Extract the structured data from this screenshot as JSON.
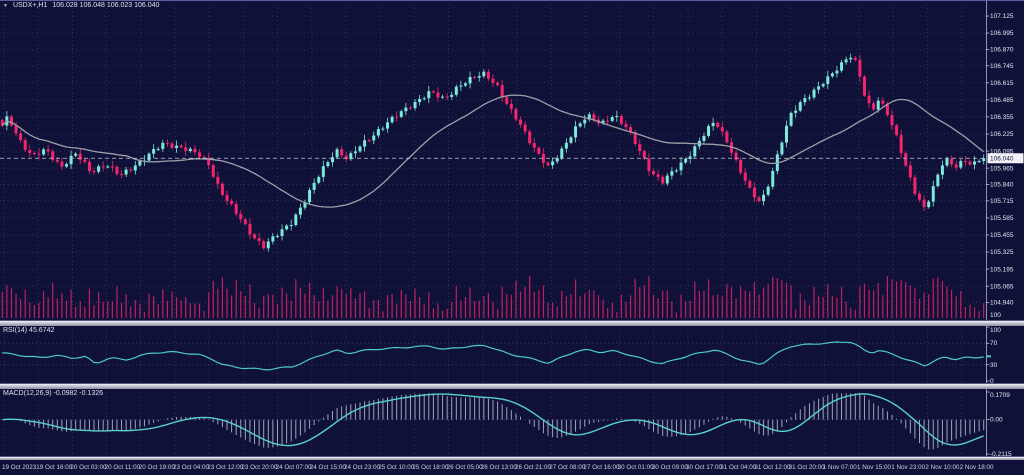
{
  "colors": {
    "background": "#0f1138",
    "grid": "#3c4070",
    "bull": "#7ce9dc",
    "bear": "#f5256d",
    "ma": "#9fa0a8",
    "rsi_line": "#4fc8c8",
    "macd_signal": "#5ad0ca",
    "macd_histogram": "#b9bdd4",
    "volume": "#c02060",
    "axis_text": "#e4e6f2",
    "time_text": "#cdd0e2",
    "current_price_bg": "#f2f2f6",
    "current_price_text": "#12143c",
    "price_line": "#c8c8d2"
  },
  "main_chart": {
    "symbol_menu_icon": "▼",
    "symbol_timeframe": "USDX+,H1",
    "ohlc_text": "106.028 106.048 106.023 106.040",
    "current_price": "106.040",
    "volume_axis_label": "100"
  },
  "rsi_pane": {
    "label": "RSI(14) 45.6742"
  },
  "macd_pane": {
    "label": "MACD(12,26,9) -0.0982 -0.1326"
  },
  "chart_data": {
    "type": "candlestick",
    "symbol": "USDX+",
    "timeframe": "H1",
    "last_ohlc": {
      "open": 106.028,
      "high": 106.048,
      "low": 106.023,
      "close": 106.04
    },
    "bars": 215,
    "price_range": [
      104.94,
      107.125
    ],
    "price_ticks": [
      "107.125",
      "106.995",
      "106.870",
      "106.745",
      "106.615",
      "106.485",
      "106.355",
      "106.225",
      "106.095",
      "105.965",
      "105.840",
      "105.715",
      "105.585",
      "105.455",
      "105.325",
      "105.195",
      "105.065",
      "104.940"
    ],
    "time_labels": [
      "19 Oct 2023",
      "19 Oct 16:00",
      "20 Oct 03:00",
      "20 Oct 11:00",
      "20 Oct 19:00",
      "23 Oct 04:00",
      "23 Oct 12:00",
      "23 Oct 20:00",
      "24 Oct 07:00",
      "24 Oct 15:00",
      "24 Oct 23:00",
      "25 Oct 10:00",
      "25 Oct 18:00",
      "26 Oct 05:00",
      "26 Oct 13:00",
      "26 Oct 21:00",
      "27 Oct 08:00",
      "27 Oct 16:00",
      "30 Oct 01:00",
      "30 Oct 09:00",
      "30 Oct 17:00",
      "31 Oct 04:00",
      "31 Oct 12:00",
      "31 Oct 20:00",
      "1 Nov 07:00",
      "1 Nov 15:00",
      "1 Nov 23:00",
      "2 Nov 10:00",
      "2 Nov 18:00"
    ],
    "price_path": [
      [
        0,
        106.28
      ],
      [
        0.006,
        106.36
      ],
      [
        0.015,
        106.22
      ],
      [
        0.03,
        106.05
      ],
      [
        0.045,
        106.1
      ],
      [
        0.06,
        105.98
      ],
      [
        0.075,
        106.07
      ],
      [
        0.09,
        105.94
      ],
      [
        0.105,
        106.0
      ],
      [
        0.12,
        105.9
      ],
      [
        0.135,
        105.99
      ],
      [
        0.15,
        106.07
      ],
      [
        0.165,
        106.15
      ],
      [
        0.182,
        106.13
      ],
      [
        0.198,
        106.07
      ],
      [
        0.21,
        106.0
      ],
      [
        0.222,
        105.8
      ],
      [
        0.238,
        105.62
      ],
      [
        0.252,
        105.48
      ],
      [
        0.266,
        105.37
      ],
      [
        0.28,
        105.45
      ],
      [
        0.294,
        105.55
      ],
      [
        0.31,
        105.74
      ],
      [
        0.326,
        105.95
      ],
      [
        0.34,
        106.11
      ],
      [
        0.352,
        106.03
      ],
      [
        0.366,
        106.14
      ],
      [
        0.382,
        106.25
      ],
      [
        0.4,
        106.35
      ],
      [
        0.418,
        106.46
      ],
      [
        0.436,
        106.54
      ],
      [
        0.45,
        106.49
      ],
      [
        0.464,
        106.59
      ],
      [
        0.478,
        106.64
      ],
      [
        0.492,
        106.69
      ],
      [
        0.504,
        106.6
      ],
      [
        0.516,
        106.42
      ],
      [
        0.53,
        106.27
      ],
      [
        0.544,
        106.1
      ],
      [
        0.557,
        105.96
      ],
      [
        0.57,
        106.1
      ],
      [
        0.583,
        106.27
      ],
      [
        0.596,
        106.36
      ],
      [
        0.61,
        106.3
      ],
      [
        0.623,
        106.38
      ],
      [
        0.636,
        106.27
      ],
      [
        0.649,
        106.1
      ],
      [
        0.661,
        105.94
      ],
      [
        0.673,
        105.86
      ],
      [
        0.686,
        105.95
      ],
      [
        0.7,
        106.07
      ],
      [
        0.713,
        106.2
      ],
      [
        0.726,
        106.32
      ],
      [
        0.739,
        106.17
      ],
      [
        0.751,
        105.96
      ],
      [
        0.763,
        105.77
      ],
      [
        0.773,
        105.7
      ],
      [
        0.783,
        105.9
      ],
      [
        0.793,
        106.14
      ],
      [
        0.803,
        106.36
      ],
      [
        0.816,
        106.49
      ],
      [
        0.829,
        106.57
      ],
      [
        0.841,
        106.64
      ],
      [
        0.853,
        106.74
      ],
      [
        0.863,
        106.84
      ],
      [
        0.871,
        106.76
      ],
      [
        0.879,
        106.5
      ],
      [
        0.886,
        106.39
      ],
      [
        0.893,
        106.49
      ],
      [
        0.901,
        106.41
      ],
      [
        0.911,
        106.21
      ],
      [
        0.921,
        105.96
      ],
      [
        0.931,
        105.76
      ],
      [
        0.94,
        105.66
      ],
      [
        0.95,
        105.85
      ],
      [
        0.96,
        106.03
      ],
      [
        0.97,
        105.97
      ],
      [
        0.98,
        106.03
      ],
      [
        0.99,
        106.0
      ],
      [
        1,
        106.04
      ]
    ],
    "indicators": {
      "rsi": {
        "label": "RSI(14)",
        "current": 45.6742,
        "axis_labels": [
          "100",
          "70",
          "30",
          "0"
        ],
        "axis_values": [
          100,
          70,
          30,
          0
        ],
        "levels": [
          70,
          30
        ],
        "path": [
          [
            0,
            52
          ],
          [
            0.02,
            47
          ],
          [
            0.04,
            43
          ],
          [
            0.055,
            48
          ],
          [
            0.07,
            42
          ],
          [
            0.085,
            46
          ],
          [
            0.095,
            31
          ],
          [
            0.11,
            44
          ],
          [
            0.125,
            38
          ],
          [
            0.14,
            47
          ],
          [
            0.155,
            52
          ],
          [
            0.17,
            54
          ],
          [
            0.185,
            52
          ],
          [
            0.2,
            49
          ],
          [
            0.212,
            42
          ],
          [
            0.225,
            30
          ],
          [
            0.24,
            25
          ],
          [
            0.255,
            23
          ],
          [
            0.268,
            21
          ],
          [
            0.282,
            24
          ],
          [
            0.295,
            26
          ],
          [
            0.31,
            37
          ],
          [
            0.326,
            49
          ],
          [
            0.34,
            57
          ],
          [
            0.352,
            51
          ],
          [
            0.366,
            56
          ],
          [
            0.382,
            59
          ],
          [
            0.4,
            61
          ],
          [
            0.418,
            63
          ],
          [
            0.436,
            65
          ],
          [
            0.45,
            58
          ],
          [
            0.464,
            62
          ],
          [
            0.478,
            64
          ],
          [
            0.492,
            66
          ],
          [
            0.504,
            58
          ],
          [
            0.516,
            50
          ],
          [
            0.53,
            45
          ],
          [
            0.544,
            39
          ],
          [
            0.557,
            33
          ],
          [
            0.57,
            44
          ],
          [
            0.583,
            54
          ],
          [
            0.596,
            58
          ],
          [
            0.61,
            53
          ],
          [
            0.623,
            56
          ],
          [
            0.636,
            50
          ],
          [
            0.649,
            43
          ],
          [
            0.661,
            36
          ],
          [
            0.673,
            32
          ],
          [
            0.686,
            40
          ],
          [
            0.7,
            47
          ],
          [
            0.713,
            53
          ],
          [
            0.726,
            58
          ],
          [
            0.739,
            49
          ],
          [
            0.751,
            40
          ],
          [
            0.763,
            34
          ],
          [
            0.773,
            31
          ],
          [
            0.783,
            43
          ],
          [
            0.793,
            55
          ],
          [
            0.803,
            64
          ],
          [
            0.816,
            67
          ],
          [
            0.829,
            69
          ],
          [
            0.841,
            70
          ],
          [
            0.853,
            72
          ],
          [
            0.863,
            73
          ],
          [
            0.871,
            66
          ],
          [
            0.879,
            56
          ],
          [
            0.886,
            52
          ],
          [
            0.893,
            57
          ],
          [
            0.901,
            53
          ],
          [
            0.911,
            47
          ],
          [
            0.921,
            40
          ],
          [
            0.931,
            34
          ],
          [
            0.94,
            28
          ],
          [
            0.95,
            38
          ],
          [
            0.96,
            44
          ],
          [
            0.97,
            40
          ],
          [
            0.98,
            44
          ],
          [
            0.99,
            42
          ],
          [
            1,
            45.67
          ]
        ]
      },
      "macd": {
        "label": "MACD(12,26,9)",
        "fast": 12,
        "slow": 26,
        "signal": 9,
        "macd_current": -0.0982,
        "signal_current": -0.1326,
        "axis_labels": [
          "0.1709",
          "0.00",
          "-0.2115"
        ],
        "axis_values": [
          0.1709,
          0,
          -0.2115
        ],
        "range": [
          -0.2115,
          0.1709
        ]
      }
    }
  }
}
